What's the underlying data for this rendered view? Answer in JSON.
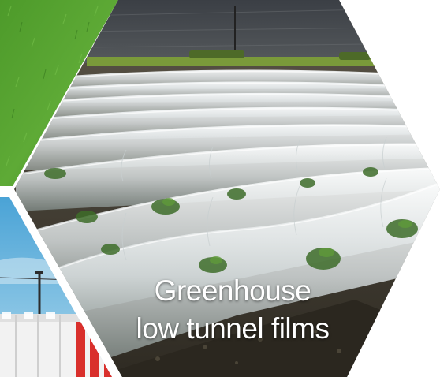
{
  "caption": {
    "line1": "Greenhouse",
    "line2": "low tunnel films"
  },
  "tiles": [
    {
      "name": "grass-photo",
      "subject": "green lawn"
    },
    {
      "name": "road-barrier-photo",
      "subject": "red and white plastic road barriers under blue sky"
    },
    {
      "name": "greenhouse-low-tunnel-photo",
      "subject": "rows of plastic film low tunnels over seedlings"
    }
  ],
  "colors": {
    "background": "#ffffff",
    "caption_text": "#ffffff",
    "grass": "#4f9a2e",
    "sky": "#6fb7dd",
    "barrier_red": "#d9302c",
    "soil": "#3e3a30",
    "film": "#e9edef"
  }
}
